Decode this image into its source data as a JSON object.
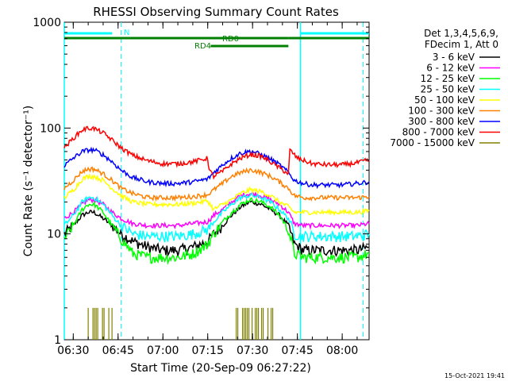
{
  "chart_data": {
    "type": "line",
    "title": "RHESSI Observing Summary Count Rates",
    "xlabel": "Start Time (20-Sep-09 06:27:22)",
    "ylabel": "Count Rate (s⁻¹ detector⁻¹)",
    "x_unit": "time HH:MM",
    "xlim": [
      "06:27",
      "08:09"
    ],
    "ylim": [
      1,
      1000
    ],
    "yscale": "log",
    "x_ticks": [
      "06:30",
      "06:45",
      "07:00",
      "07:15",
      "07:30",
      "07:45",
      "08:00"
    ],
    "y_ticks": [
      1,
      10,
      100,
      1000
    ],
    "y_tick_labels": [
      "1",
      "10",
      "100",
      "1000"
    ],
    "legend_header": [
      "Det 1,3,4,5,6,9,",
      "FDecim 1, Att 0"
    ],
    "legend_position": "right",
    "series": [
      {
        "name": "3 - 6 keV",
        "color": "#000000",
        "x": [
          "06:27",
          "06:30",
          "06:33",
          "06:35",
          "06:37",
          "06:40",
          "06:43",
          "06:46",
          "06:50",
          "06:55",
          "07:00",
          "07:05",
          "07:10",
          "07:15",
          "07:17",
          "07:20",
          "07:23",
          "07:26",
          "07:29",
          "07:30",
          "07:33",
          "07:36",
          "07:39",
          "07:42",
          "07:44",
          "07:47",
          "07:50",
          "07:55",
          "08:00",
          "08:05",
          "08:09"
        ],
        "values": [
          10,
          12,
          15,
          16,
          16,
          14,
          12,
          10,
          8.5,
          7.5,
          7,
          7,
          7.5,
          8.5,
          10,
          12,
          15,
          18,
          20,
          20,
          19,
          17,
          15,
          12,
          8,
          7,
          7,
          7,
          7,
          7,
          7.5
        ]
      },
      {
        "name": "6 - 12 keV",
        "color": "#ff00ff",
        "x": [
          "06:27",
          "06:30",
          "06:33",
          "06:35",
          "06:37",
          "06:40",
          "06:43",
          "06:46",
          "06:50",
          "06:55",
          "07:00",
          "07:05",
          "07:10",
          "07:15",
          "07:17",
          "07:20",
          "07:23",
          "07:26",
          "07:29",
          "07:30",
          "07:33",
          "07:36",
          "07:39",
          "07:42",
          "07:44",
          "07:47",
          "07:50",
          "07:55",
          "08:00",
          "08:05",
          "08:09"
        ],
        "values": [
          14,
          16,
          19,
          21,
          21,
          19,
          16,
          14,
          12.5,
          12,
          12,
          12,
          12.5,
          13,
          15,
          17,
          20,
          23,
          24,
          24,
          23,
          21,
          19,
          16,
          12.5,
          12,
          12,
          12,
          12,
          12,
          12.5
        ]
      },
      {
        "name": "12 - 25 keV",
        "color": "#00ff00",
        "x": [
          "06:27",
          "06:30",
          "06:33",
          "06:35",
          "06:37",
          "06:40",
          "06:43",
          "06:46",
          "06:50",
          "06:55",
          "07:00",
          "07:05",
          "07:10",
          "07:15",
          "07:17",
          "07:20",
          "07:23",
          "07:26",
          "07:29",
          "07:30",
          "07:33",
          "07:36",
          "07:39",
          "07:42",
          "07:44",
          "07:47",
          "07:50",
          "07:55",
          "08:00",
          "08:05",
          "08:09"
        ],
        "values": [
          9,
          12,
          17,
          19,
          19,
          16,
          12,
          9,
          6.5,
          6,
          6,
          6,
          6.5,
          8,
          10,
          13,
          16,
          19,
          21,
          21,
          20,
          18,
          15,
          11,
          6.5,
          6,
          6,
          6,
          6,
          6,
          6.5
        ]
      },
      {
        "name": "25 - 50 keV",
        "color": "#00ffff",
        "x": [
          "06:27",
          "06:30",
          "06:33",
          "06:35",
          "06:37",
          "06:40",
          "06:43",
          "06:46",
          "06:50",
          "06:55",
          "07:00",
          "07:05",
          "07:10",
          "07:15",
          "07:17",
          "07:20",
          "07:23",
          "07:26",
          "07:29",
          "07:30",
          "07:33",
          "07:36",
          "07:39",
          "07:42",
          "07:44",
          "07:47",
          "07:50",
          "07:55",
          "08:00",
          "08:05",
          "08:09"
        ],
        "values": [
          12,
          15,
          20,
          22,
          22,
          19,
          15,
          12,
          10,
          9.5,
          9.5,
          9.5,
          10,
          11,
          13,
          16,
          19,
          22,
          23,
          23,
          22,
          20,
          17,
          14,
          10,
          9.5,
          9.5,
          9.5,
          9.5,
          9.5,
          10
        ]
      },
      {
        "name": "50 - 100 keV",
        "color": "#ffff00",
        "x": [
          "06:27",
          "06:30",
          "06:33",
          "06:35",
          "06:37",
          "06:40",
          "06:43",
          "06:46",
          "06:50",
          "06:55",
          "07:00",
          "07:05",
          "07:10",
          "07:15",
          "07:17",
          "07:20",
          "07:23",
          "07:26",
          "07:29",
          "07:30",
          "07:33",
          "07:36",
          "07:39",
          "07:42",
          "07:44",
          "07:47",
          "07:50",
          "07:55",
          "08:00",
          "08:05",
          "08:09"
        ],
        "values": [
          22,
          26,
          33,
          35,
          35,
          32,
          27,
          23,
          20,
          19,
          19,
          19,
          19.5,
          20.5,
          17,
          19,
          21,
          24,
          26,
          26,
          25,
          23,
          20,
          18,
          16,
          16,
          16,
          16,
          16,
          16,
          16.5
        ]
      },
      {
        "name": "100 - 300 keV",
        "color": "#ff8000",
        "x": [
          "06:27",
          "06:30",
          "06:33",
          "06:35",
          "06:37",
          "06:40",
          "06:43",
          "06:46",
          "06:50",
          "06:55",
          "07:00",
          "07:05",
          "07:10",
          "07:15",
          "07:17",
          "07:20",
          "07:23",
          "07:26",
          "07:29",
          "07:30",
          "07:33",
          "07:36",
          "07:39",
          "07:42",
          "07:44",
          "07:47",
          "07:50",
          "07:55",
          "08:00",
          "08:05",
          "08:09"
        ],
        "values": [
          27,
          32,
          39,
          41,
          41,
          37,
          32,
          27,
          24,
          22,
          22,
          22,
          22.5,
          23.5,
          26,
          30,
          35,
          38,
          40,
          40,
          38,
          35,
          31,
          27,
          23,
          22,
          22,
          22,
          22,
          22,
          22.5
        ]
      },
      {
        "name": "300 - 800 keV",
        "color": "#0000ff",
        "x": [
          "06:27",
          "06:30",
          "06:33",
          "06:35",
          "06:37",
          "06:40",
          "06:43",
          "06:46",
          "06:50",
          "06:55",
          "07:00",
          "07:05",
          "07:10",
          "07:15",
          "07:17",
          "07:20",
          "07:23",
          "07:26",
          "07:29",
          "07:30",
          "07:33",
          "07:36",
          "07:39",
          "07:42",
          "07:44",
          "07:47",
          "07:50",
          "07:55",
          "08:00",
          "08:05",
          "08:09"
        ],
        "values": [
          44,
          52,
          60,
          62,
          62,
          56,
          48,
          40,
          34,
          31,
          30,
          30,
          31,
          33,
          38,
          45,
          52,
          58,
          60,
          60,
          56,
          51,
          45,
          38,
          32,
          30,
          29,
          29,
          29,
          30,
          31
        ]
      },
      {
        "name": "800 - 7000 keV",
        "color": "#ff0000",
        "x": [
          "06:27",
          "06:30",
          "06:33",
          "06:35",
          "06:37",
          "06:40",
          "06:43",
          "06:46",
          "06:50",
          "06:55",
          "07:00",
          "07:05",
          "07:10",
          "07:15",
          "07:15.5",
          "07:17",
          "07:20",
          "07:23",
          "07:26",
          "07:29",
          "07:30",
          "07:33",
          "07:36",
          "07:39",
          "07:42",
          "07:42.5",
          "07:45",
          "07:50",
          "07:55",
          "08:00",
          "08:05",
          "08:09"
        ],
        "values": [
          65,
          80,
          96,
          100,
          99,
          90,
          77,
          65,
          55,
          49,
          46,
          46,
          48,
          52,
          40,
          35,
          39,
          46,
          52,
          56,
          56,
          54,
          48,
          42,
          37,
          62,
          52,
          46,
          45,
          45,
          47,
          50
        ]
      }
    ],
    "bar_series": {
      "name": "7000 - 15000 keV",
      "color": "#808000",
      "x_ranges": [
        [
          "06:35",
          "06:43"
        ],
        [
          "07:24",
          "07:37"
        ]
      ],
      "values": [
        2,
        2
      ]
    },
    "annotations": [
      {
        "label": "N",
        "color": "#00ffff",
        "x_range": [
          "06:27",
          "06:43"
        ]
      },
      {
        "label": "",
        "color": "#00ffff",
        "x_range": [
          "07:46",
          "08:09"
        ]
      },
      {
        "label": "RD0",
        "color": "#008000",
        "x_range": [
          "06:27",
          "07:42"
        ]
      },
      {
        "label": "",
        "color": "#008000",
        "x_range": [
          "07:42",
          "08:09"
        ]
      },
      {
        "label": "RD4",
        "color": "#008000",
        "x_range": [
          "07:16",
          "07:42"
        ]
      }
    ],
    "vertical_lines_solid": [
      "06:27",
      "07:46"
    ],
    "vertical_lines_dashed": [
      "06:46",
      "08:07"
    ],
    "grid": false
  },
  "footer": {
    "timestamp": "15-Oct-2021 19:41"
  }
}
